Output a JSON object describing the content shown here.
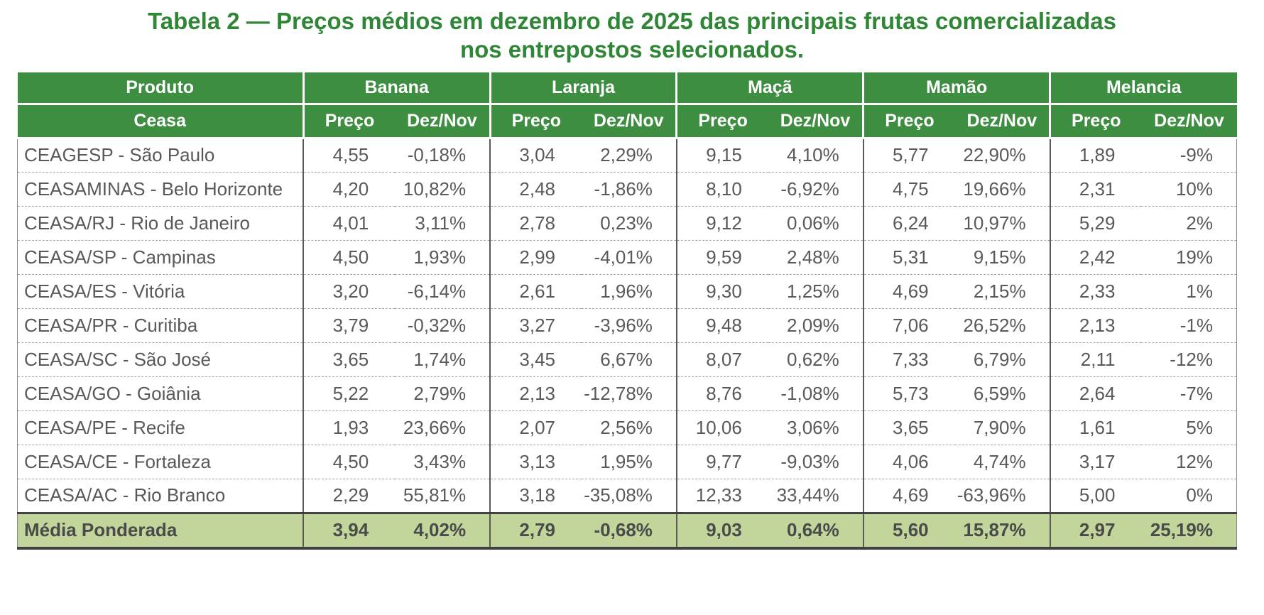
{
  "title": {
    "line1": "Tabela 2 — Preços médios em dezembro de 2025 das principais frutas comercializadas",
    "line2": "nos entrepostos selecionados."
  },
  "table": {
    "product_col_header": "Produto",
    "ceasa_col_header": "Ceasa",
    "price_label": "Preço",
    "ratio_label": "Dez/Nov",
    "products": [
      "Banana",
      "Laranja",
      "Maçã",
      "Mamão",
      "Melancia"
    ],
    "rows": [
      {
        "ceasa": "CEAGESP - São Paulo",
        "values": [
          "4,55",
          "-0,18%",
          "3,04",
          "2,29%",
          "9,15",
          "4,10%",
          "5,77",
          "22,90%",
          "1,89",
          "-9%"
        ]
      },
      {
        "ceasa": "CEASAMINAS - Belo Horizonte",
        "values": [
          "4,20",
          "10,82%",
          "2,48",
          "-1,86%",
          "8,10",
          "-6,92%",
          "4,75",
          "19,66%",
          "2,31",
          "10%"
        ]
      },
      {
        "ceasa": "CEASA/RJ - Rio de Janeiro",
        "values": [
          "4,01",
          "3,11%",
          "2,78",
          "0,23%",
          "9,12",
          "0,06%",
          "6,24",
          "10,97%",
          "5,29",
          "2%"
        ]
      },
      {
        "ceasa": "CEASA/SP - Campinas",
        "values": [
          "4,50",
          "1,93%",
          "2,99",
          "-4,01%",
          "9,59",
          "2,48%",
          "5,31",
          "9,15%",
          "2,42",
          "19%"
        ]
      },
      {
        "ceasa": "CEASA/ES - Vitória",
        "values": [
          "3,20",
          "-6,14%",
          "2,61",
          "1,96%",
          "9,30",
          "1,25%",
          "4,69",
          "2,15%",
          "2,33",
          "1%"
        ]
      },
      {
        "ceasa": "CEASA/PR - Curitiba",
        "values": [
          "3,79",
          "-0,32%",
          "3,27",
          "-3,96%",
          "9,48",
          "2,09%",
          "7,06",
          "26,52%",
          "2,13",
          "-1%"
        ]
      },
      {
        "ceasa": "CEASA/SC - São José",
        "values": [
          "3,65",
          "1,74%",
          "3,45",
          "6,67%",
          "8,07",
          "0,62%",
          "7,33",
          "6,79%",
          "2,11",
          "-12%"
        ]
      },
      {
        "ceasa": "CEASA/GO - Goiânia",
        "values": [
          "5,22",
          "2,79%",
          "2,13",
          "-12,78%",
          "8,76",
          "-1,08%",
          "5,73",
          "6,59%",
          "2,64",
          "-7%"
        ]
      },
      {
        "ceasa": "CEASA/PE - Recife",
        "values": [
          "1,93",
          "23,66%",
          "2,07",
          "2,56%",
          "10,06",
          "3,06%",
          "3,65",
          "7,90%",
          "1,61",
          "5%"
        ]
      },
      {
        "ceasa": "CEASA/CE - Fortaleza",
        "values": [
          "4,50",
          "3,43%",
          "3,13",
          "1,95%",
          "9,77",
          "-9,03%",
          "4,06",
          "4,74%",
          "3,17",
          "12%"
        ]
      },
      {
        "ceasa": "CEASA/AC - Rio Branco",
        "values": [
          "2,29",
          "55,81%",
          "3,18",
          "-35,08%",
          "12,33",
          "33,44%",
          "4,69",
          "-63,96%",
          "5,00",
          "0%"
        ]
      }
    ],
    "footer": {
      "label": "Média Ponderada",
      "values": [
        "3,94",
        "4,02%",
        "2,79",
        "-0,68%",
        "9,03",
        "0,64%",
        "5,60",
        "15,87%",
        "2,97",
        "25,19%"
      ]
    }
  },
  "colors": {
    "title_green": "#2f8636",
    "header_green": "#3e8e41",
    "footer_background": "#c2d69b",
    "body_text_gray": "#595959"
  }
}
